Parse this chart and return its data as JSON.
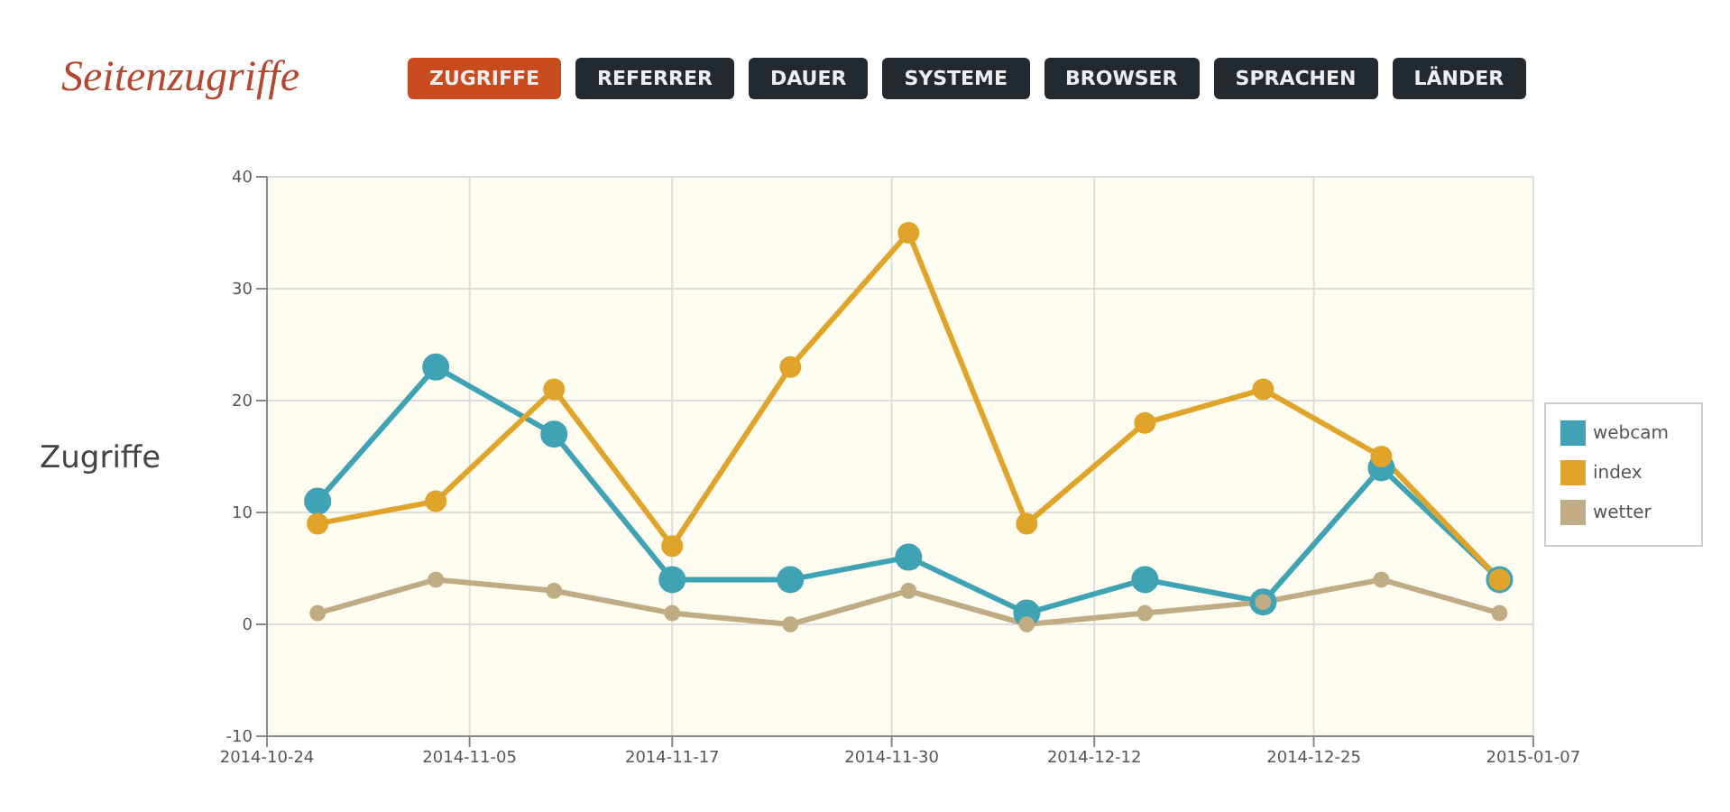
{
  "chart_data": {
    "type": "line",
    "title": "Seitenzugriffe",
    "ylabel": "Zugriffe",
    "annotations": [
      "ZUGRIFFE",
      "REFERRER",
      "DAUER",
      "SYSTEME",
      "BROWSER",
      "SPRACHEN",
      "LÄNDER"
    ],
    "x": [
      "2014-10-27",
      "2014-11-03",
      "2014-11-10",
      "2014-11-17",
      "2014-11-24",
      "2014-12-01",
      "2014-12-08",
      "2014-12-15",
      "2014-12-22",
      "2014-12-29",
      "2015-01-05"
    ],
    "series": [
      {
        "name": "webcam",
        "color": "#3fa3b5",
        "values": [
          11,
          23,
          17,
          4,
          4,
          6,
          1,
          4,
          2,
          14,
          4
        ]
      },
      {
        "name": "index",
        "color": "#e0a42a",
        "values": [
          9,
          11,
          21,
          7,
          23,
          35,
          9,
          18,
          21,
          15,
          4
        ]
      },
      {
        "name": "wetter",
        "color": "#c0ac84",
        "values": [
          1,
          4,
          3,
          1,
          0,
          3,
          0,
          1,
          2,
          4,
          1
        ]
      }
    ],
    "xlim": [
      "2014-10-24",
      "2015-01-07"
    ],
    "xticks": [
      "2014-10-24",
      "2014-11-05",
      "2014-11-17",
      "2014-11-30",
      "2014-12-12",
      "2014-12-25",
      "2015-01-07"
    ],
    "ylim": [
      -10,
      40
    ],
    "yticks": [
      -10,
      0,
      10,
      20,
      30,
      40
    ],
    "grid": true,
    "legend": "right",
    "marker": "circle",
    "line_style": "solid"
  }
}
